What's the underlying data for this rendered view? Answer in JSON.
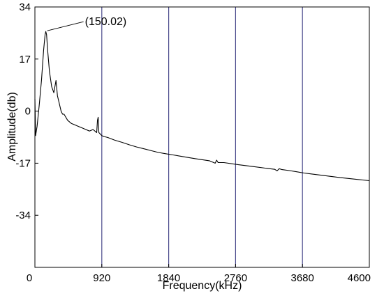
{
  "chart_data": {
    "type": "line",
    "title": "",
    "xlabel": "Frequency(kHz)",
    "ylabel": "Amplitude(db)",
    "xlim": [
      0,
      4600
    ],
    "ylim": [
      -51,
      34
    ],
    "x_ticks": [
      0,
      920,
      1840,
      2760,
      3680,
      4600
    ],
    "x_tick_labels": [
      "0",
      "920",
      "1840",
      "2760",
      "3680",
      "4600"
    ],
    "y_ticks": [
      34,
      17,
      0,
      -17,
      -34
    ],
    "y_tick_labels": [
      "34",
      "17",
      "0",
      "-17",
      "-34"
    ],
    "grid": "vertical lines at x ticks",
    "colors": {
      "line": "#000000",
      "grid": "#4a4a8c",
      "frame": "#000000"
    },
    "annotations": [
      {
        "text": "(150.02)",
        "x": 150.02,
        "y": 26
      }
    ],
    "series": [
      {
        "x": [
          0,
          10,
          30,
          60,
          90,
          120,
          140,
          150,
          160,
          175,
          200,
          230,
          260,
          290,
          310,
          330,
          340,
          360,
          380,
          400,
          450,
          500,
          550,
          600,
          650,
          700,
          750,
          800,
          850,
          860,
          870,
          880,
          900,
          920,
          950,
          1000,
          1100,
          1200,
          1300,
          1400,
          1500,
          1600,
          1700,
          1800,
          1900,
          2000,
          2200,
          2400,
          2480,
          2500,
          2520,
          2600,
          2800,
          3000,
          3200,
          3300,
          3330,
          3360,
          3400,
          3500,
          3600,
          3700,
          3800,
          4000,
          4200,
          4400,
          4600
        ],
        "y": [
          4,
          -8,
          -5,
          2,
          10,
          20,
          25,
          26,
          25,
          20,
          13,
          8,
          6,
          10,
          5,
          3,
          2,
          0,
          -1,
          -1,
          -3,
          -4,
          -4.5,
          -5,
          -5.5,
          -6,
          -6.5,
          -6,
          -7,
          -3,
          -2,
          -7,
          -7.5,
          -8,
          -8.3,
          -8.6,
          -9.5,
          -10.2,
          -11,
          -11.7,
          -12.3,
          -12.9,
          -13.5,
          -13.9,
          -14.3,
          -14.7,
          -15.5,
          -16.2,
          -17,
          -16,
          -16.8,
          -16.8,
          -17.5,
          -18.1,
          -18.7,
          -19,
          -19.5,
          -18.8,
          -19.1,
          -19.4,
          -19.8,
          -20.2,
          -20.5,
          -21.1,
          -21.7,
          -22.2,
          -22.7
        ]
      }
    ]
  }
}
